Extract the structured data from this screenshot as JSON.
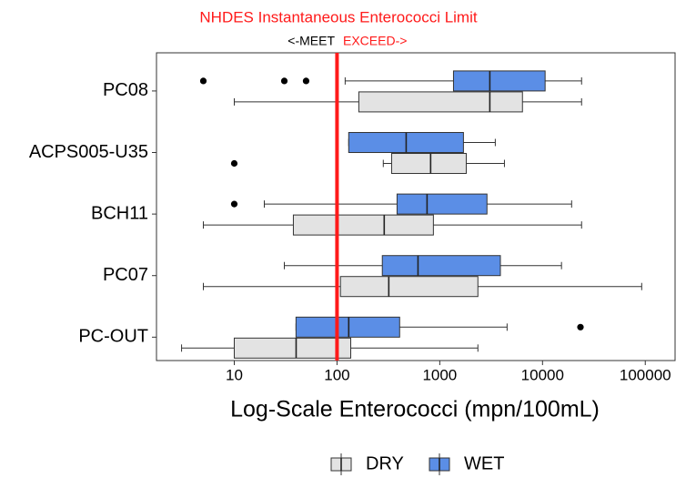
{
  "chart_data": {
    "type": "boxplot",
    "orientation": "horizontal",
    "reference_line": {
      "value": 100,
      "label": "NHDES Instantaneous Enterococci Limit",
      "color": "#ff1a1a"
    },
    "annotations": [
      "<-MEET",
      "EXCEED->"
    ],
    "x_label": "Log-Scale Enterococci (mpn/100mL)",
    "x_scale": "log",
    "xlim": [
      1.75,
      195000
    ],
    "xticks": [
      10,
      100,
      1000,
      10000,
      100000
    ],
    "categories": [
      "PC08",
      "ACPS005-U35",
      "BCH11",
      "PC07",
      "PC-OUT"
    ],
    "legend_position": "bottom",
    "series": [
      {
        "name": "DRY",
        "color": "#e3e3e3",
        "boxes": [
          {
            "min": 10,
            "q1": 163,
            "median": 3070,
            "q3": 6380,
            "max": 24000,
            "outliers": []
          },
          {
            "min": 282,
            "q1": 340,
            "median": 815,
            "q3": 1810,
            "max": 4260,
            "outliers": [
              10
            ]
          },
          {
            "min": 5,
            "q1": 37.6,
            "median": 288,
            "q3": 867,
            "max": 24000,
            "outliers": []
          },
          {
            "min": 5,
            "q1": 108,
            "median": 319,
            "q3": 2350,
            "max": 92300,
            "outliers": []
          },
          {
            "min": 3.07,
            "q1": 10,
            "median": 40,
            "q3": 136,
            "max": 2350,
            "outliers": []
          }
        ]
      },
      {
        "name": "WET",
        "color": "#5b8ee6",
        "boxes": [
          {
            "min": 120,
            "q1": 1360,
            "median": 3070,
            "q3": 10600,
            "max": 24000,
            "outliers": [
              5,
              30.7,
              50
            ]
          },
          {
            "min": 130,
            "q1": 130,
            "median": 471,
            "q3": 1700,
            "max": 3470,
            "outliers": []
          },
          {
            "min": 19.6,
            "q1": 384,
            "median": 752,
            "q3": 2880,
            "max": 19200,
            "outliers": [
              10
            ]
          },
          {
            "min": 30.7,
            "q1": 276,
            "median": 614,
            "q3": 3890,
            "max": 15300,
            "outliers": []
          },
          {
            "min": 39.9,
            "q1": 39.9,
            "median": 130,
            "q3": 407,
            "max": 4520,
            "outliers": [
              23400
            ]
          }
        ]
      }
    ]
  }
}
